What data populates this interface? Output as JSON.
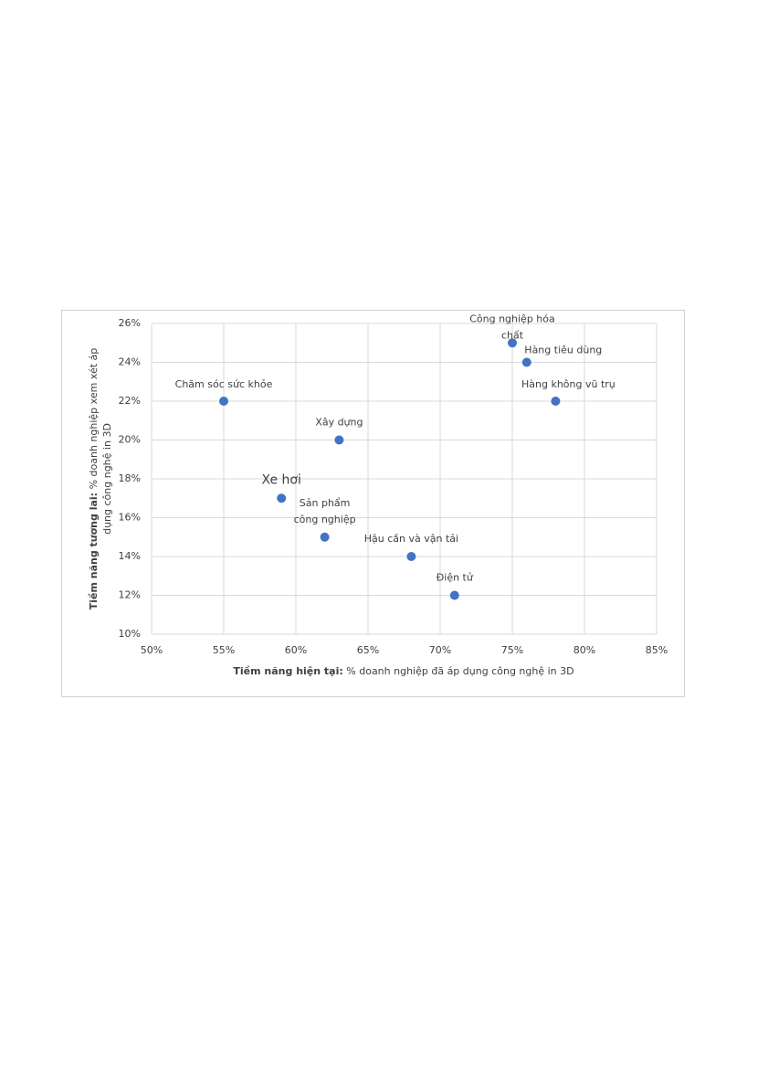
{
  "chart_data": {
    "type": "scatter",
    "xlabel": {
      "bold": "Tiềm năng hiện tại:",
      "text": " % doanh nghiệp đã áp dụng công nghệ in 3D"
    },
    "ylabel": {
      "bold": "Tiềm năng tương lai:",
      "lines": [
        " % doanh nghiệp xem xét áp",
        "dụng công nghệ in 3D"
      ]
    },
    "categories": [
      [
        "Chăm sóc sức khỏe"
      ],
      [
        "Xe hơi"
      ],
      [
        "Xây dựng"
      ],
      [
        "Sản phẩm",
        "công nghiệp"
      ],
      [
        "Hậu cần và vận tải"
      ],
      [
        "Điện tử"
      ],
      [
        "Công nghiệp hóa",
        "chất"
      ],
      [
        "Hàng tiêu dùng"
      ],
      [
        "Hàng không vũ trụ"
      ]
    ],
    "x": [
      55,
      59,
      63,
      62,
      68,
      71,
      75,
      76,
      78
    ],
    "values": [
      22,
      17,
      20,
      15,
      14,
      12,
      25,
      24,
      22
    ],
    "color": "#4472c4",
    "xlim": [
      50,
      85
    ],
    "xticks": [
      {
        "value": 50,
        "label": "50%"
      },
      {
        "value": 55,
        "label": "55%"
      },
      {
        "value": 60,
        "label": "60%"
      },
      {
        "value": 65,
        "label": "65%"
      },
      {
        "value": 70,
        "label": "70%"
      },
      {
        "value": 75,
        "label": "75%"
      },
      {
        "value": 80,
        "label": "80%"
      },
      {
        "value": 85,
        "label": "85%"
      }
    ],
    "ylim": [
      10,
      26
    ],
    "yticks": [
      {
        "value": 10,
        "label": "10%"
      },
      {
        "value": 12,
        "label": "12%"
      },
      {
        "value": 14,
        "label": "14%"
      },
      {
        "value": 16,
        "label": "16%"
      },
      {
        "value": 18,
        "label": "18%"
      },
      {
        "value": 20,
        "label": "20%"
      },
      {
        "value": 22,
        "label": "22%"
      },
      {
        "value": 24,
        "label": "24%"
      },
      {
        "value": 26,
        "label": "26%"
      }
    ],
    "grid": true
  }
}
